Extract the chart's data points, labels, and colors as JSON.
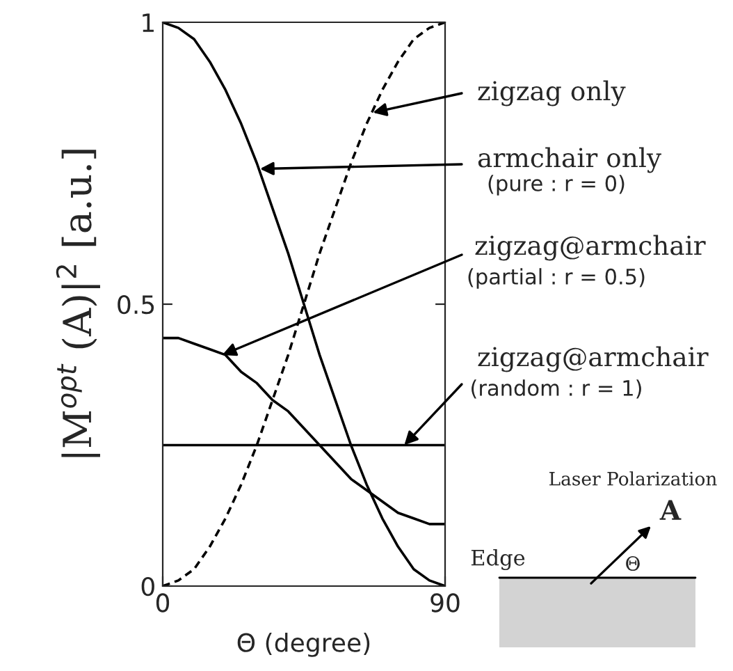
{
  "chart_data": {
    "type": "line",
    "xlabel": "Θ (degree)",
    "ylabel": "|M$^{opt}$ (A)|$^{2}$ [a.u.]",
    "xlim": [
      0,
      90
    ],
    "ylim": [
      0,
      1
    ],
    "xticks": [
      0,
      90
    ],
    "yticks": [
      0,
      0.5,
      1
    ],
    "grid": false,
    "legend": false,
    "x": [
      0,
      5,
      10,
      15,
      20,
      25,
      30,
      35,
      40,
      45,
      50,
      55,
      60,
      65,
      70,
      75,
      80,
      85,
      90
    ],
    "series": [
      {
        "color": "#000000",
        "line_style": "dashed",
        "values": [
          0,
          0.01,
          0.03,
          0.07,
          0.12,
          0.18,
          0.25,
          0.33,
          0.41,
          0.5,
          0.59,
          0.67,
          0.75,
          0.82,
          0.88,
          0.93,
          0.97,
          0.99,
          1
        ]
      },
      {
        "color": "#000000",
        "line_style": "solid",
        "values": [
          1,
          0.99,
          0.97,
          0.93,
          0.88,
          0.82,
          0.75,
          0.67,
          0.59,
          0.5,
          0.41,
          0.33,
          0.25,
          0.18,
          0.12,
          0.07,
          0.03,
          0.01,
          0
        ]
      },
      {
        "color": "#000000",
        "line_style": "solid",
        "values": [
          0.44,
          0.44,
          0.43,
          0.42,
          0.41,
          0.38,
          0.36,
          0.33,
          0.31,
          0.28,
          0.25,
          0.22,
          0.19,
          0.17,
          0.15,
          0.13,
          0.12,
          0.11,
          0.11
        ]
      },
      {
        "color": "#000000",
        "line_style": "solid",
        "values": [
          0.25,
          0.25,
          0.25,
          0.25,
          0.25,
          0.25,
          0.25,
          0.25,
          0.25,
          0.25,
          0.25,
          0.25,
          0.25,
          0.25,
          0.25,
          0.25,
          0.25,
          0.25,
          0.25
        ]
      }
    ],
    "annotations": [
      {
        "text": "zigzag only",
        "x": 67,
        "y": 0.84
      },
      {
        "text": "armchair only",
        "x": 31,
        "y": 0.74
      },
      {
        "text": "zigzag@armchair",
        "x": 19,
        "y": 0.41
      },
      {
        "text": "zigzag@armchair",
        "x": 77,
        "y": 0.25
      },
      "(pure : r = 0)",
      "(partial : r = 0.5)",
      "(random : r = 1)",
      "Laser Polarization",
      "A",
      "Edge",
      "Θ"
    ]
  }
}
